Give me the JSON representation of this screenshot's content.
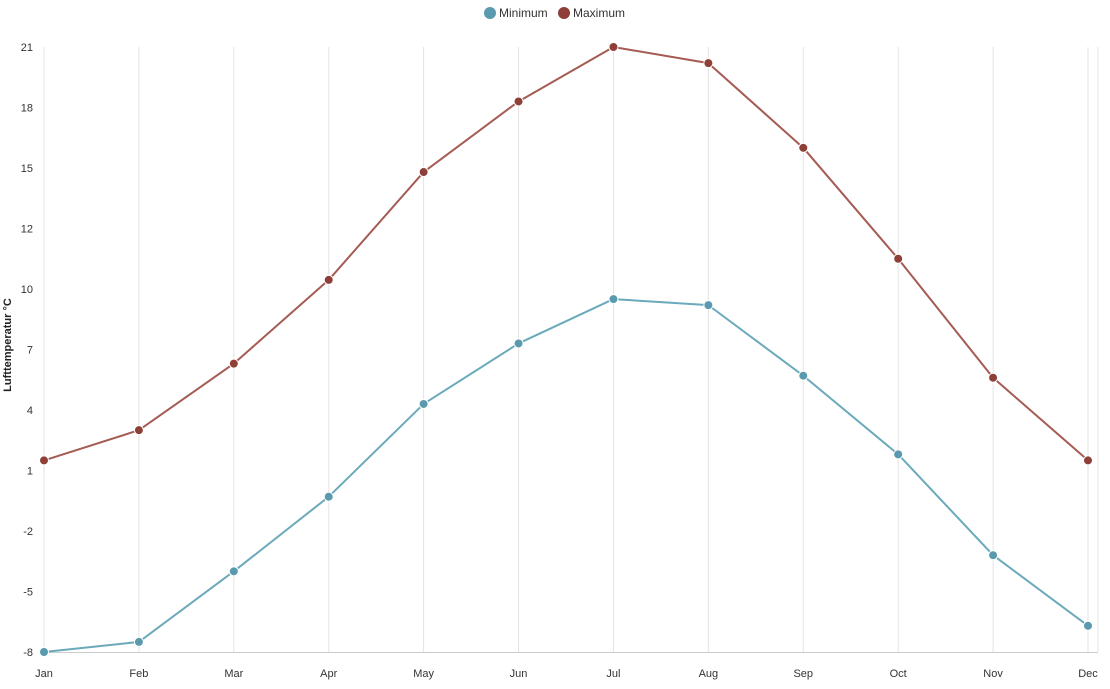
{
  "chart_data": {
    "type": "line",
    "categories": [
      "Jan",
      "Feb",
      "Mar",
      "Apr",
      "May",
      "Jun",
      "Jul",
      "Aug",
      "Sep",
      "Oct",
      "Nov",
      "Dec"
    ],
    "series": [
      {
        "name": "Minimum",
        "color": "#6aaabb",
        "marker_color": "#5a9aae",
        "values": [
          -8.0,
          -7.5,
          -4.0,
          -0.3,
          4.3,
          7.3,
          9.5,
          9.2,
          5.7,
          1.8,
          -3.2,
          -6.7
        ]
      },
      {
        "name": "Maximum",
        "color": "#a55b53",
        "marker_color": "#8e3f38",
        "values": [
          1.5,
          3.0,
          6.3,
          10.3,
          14.8,
          18.3,
          21.0,
          20.2,
          16.0,
          11.0,
          5.6,
          1.5
        ]
      }
    ],
    "ylabel": "Lufttemperatur °C",
    "xlabel": "",
    "ylim": [
      -8,
      21
    ],
    "yticks": [
      -8,
      -5,
      -2,
      1,
      4,
      7,
      10,
      12,
      15,
      18,
      21
    ],
    "grid": "vertical",
    "legend": "top-center"
  }
}
